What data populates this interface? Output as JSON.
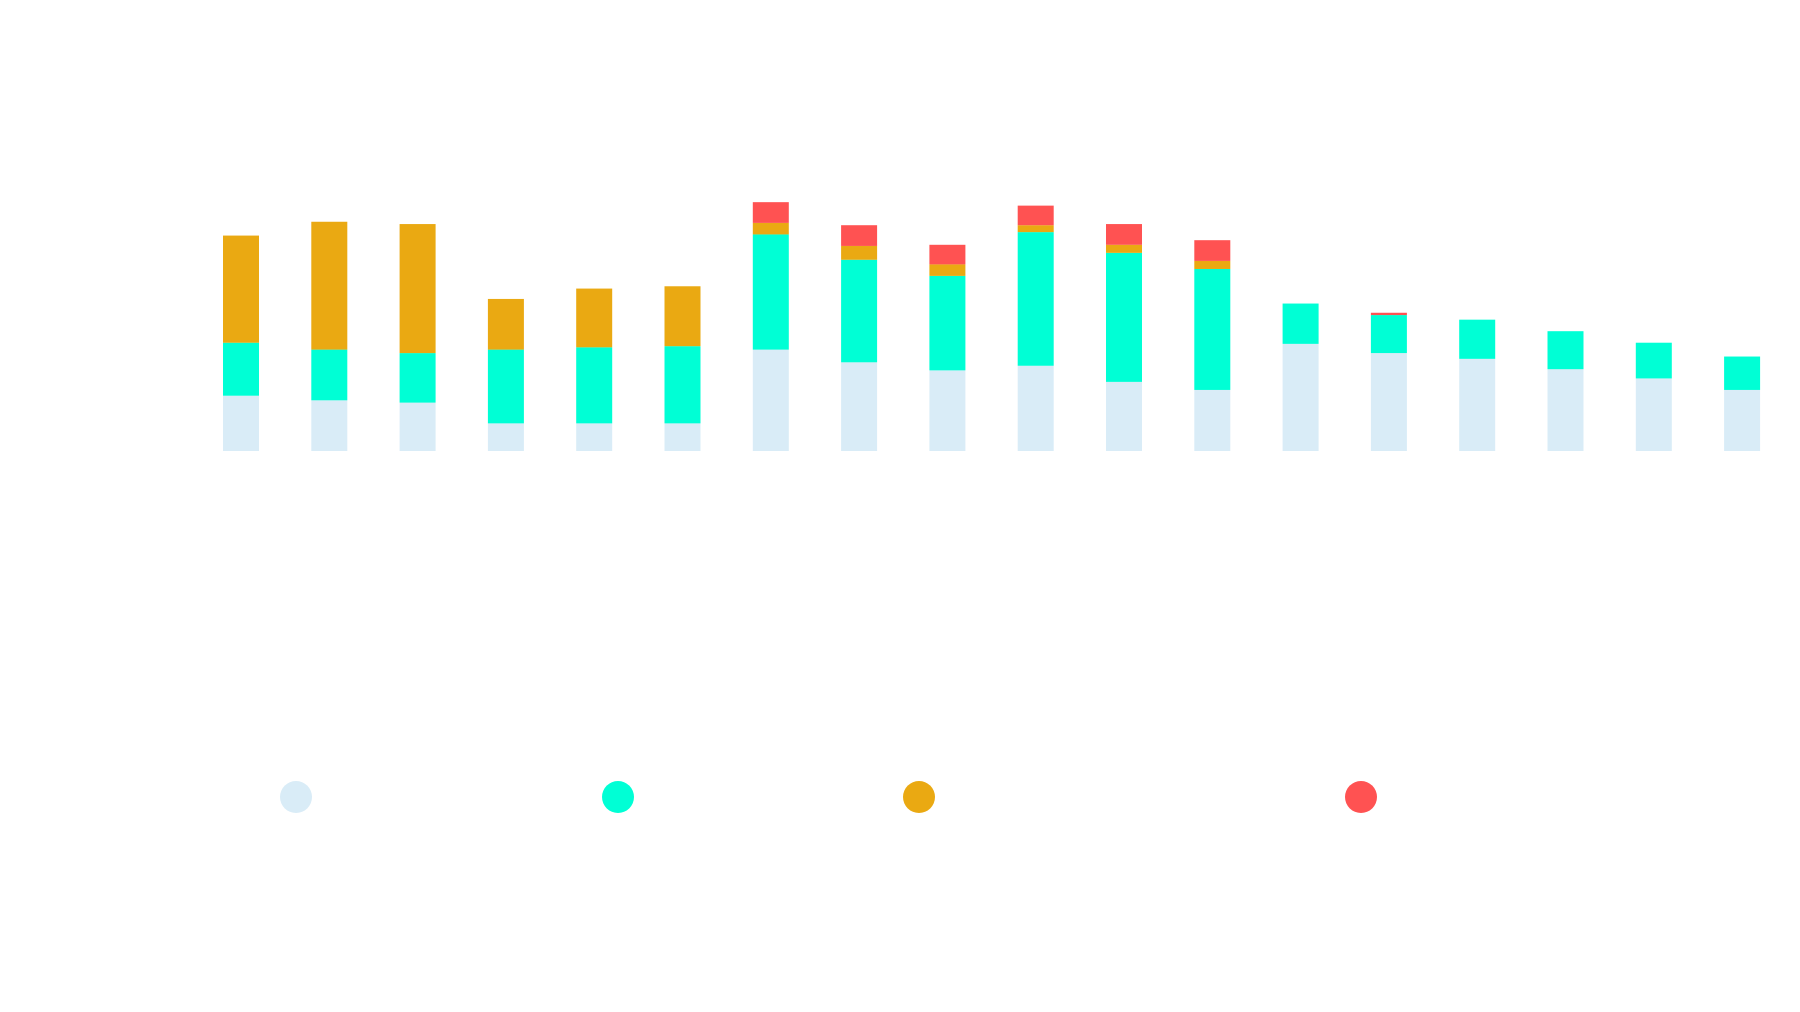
{
  "chart_data": {
    "type": "bar",
    "stacked": true,
    "title": "",
    "xlabel": "",
    "ylabel": "",
    "ylim": [
      0,
      250
    ],
    "grid": false,
    "legend_placement": "bottom",
    "series": [
      {
        "color": "#d9ecf7",
        "values": [
          48,
          44,
          42,
          24,
          24,
          24,
          88,
          77,
          70,
          74,
          60,
          53,
          93,
          85,
          80,
          71,
          63,
          53
        ]
      },
      {
        "color": "#00ffd5",
        "values": [
          46,
          44,
          43,
          64,
          66,
          67,
          100,
          89,
          82,
          116,
          112,
          105,
          35,
          33,
          34,
          33,
          31,
          29
        ]
      },
      {
        "color": "#eaa912",
        "values": [
          93,
          111,
          112,
          44,
          51,
          52,
          10,
          12,
          10,
          6,
          7,
          7,
          0,
          0,
          0,
          0,
          0,
          0
        ]
      },
      {
        "color": "#ff5252",
        "values": [
          0,
          0,
          0,
          0,
          0,
          0,
          18,
          18,
          17,
          17,
          18,
          18,
          0,
          2,
          0,
          0,
          0,
          0
        ]
      }
    ]
  }
}
